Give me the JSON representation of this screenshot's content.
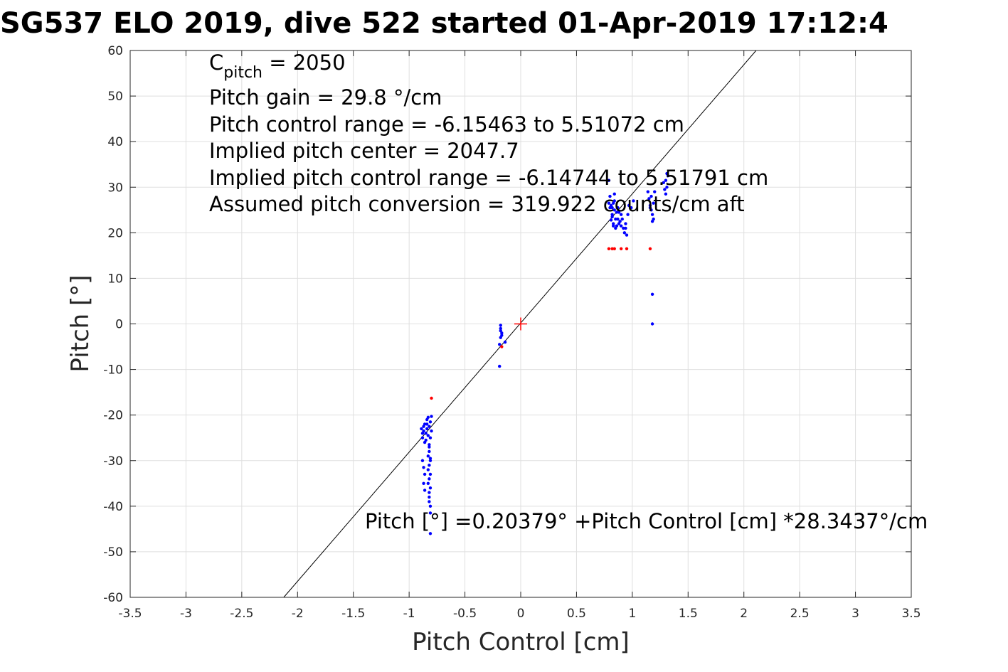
{
  "chart_data": {
    "type": "scatter",
    "title": "SG537 ELO 2019, dive 522 started 01-Apr-2019 17:12:4",
    "xlabel": "Pitch Control [cm]",
    "ylabel": "Pitch [°]",
    "xlim": [
      -3.5,
      3.5
    ],
    "ylim": [
      -60,
      60
    ],
    "xticks": [
      "-3.5",
      "-3",
      "-2.5",
      "-2",
      "-1.5",
      "-1",
      "-0.5",
      "0",
      "0.5",
      "1",
      "1.5",
      "2",
      "2.5",
      "3",
      "3.5"
    ],
    "yticks": [
      "60",
      "50",
      "40",
      "30",
      "20",
      "10",
      "0",
      "-10",
      "-20",
      "-30",
      "-40",
      "-50",
      "-60"
    ],
    "grid": true,
    "annotations": {
      "c_pitch_symbol": "C",
      "c_pitch_subscript": "pitch",
      "c_pitch_value": " = 2050",
      "gain": "Pitch gain = 29.8 °/cm",
      "control_range": "Pitch control range = -6.15463 to 5.51072 cm",
      "implied_center": "Implied pitch center = 2047.7",
      "implied_range": "Implied pitch control range = -6.14744 to 5.51791 cm",
      "conversion": "Assumed pitch conversion = 319.922 counts/cm aft",
      "fit_equation": "Pitch [°] =0.20379° +Pitch Control [cm] *28.3437°/cm"
    },
    "fit_line": {
      "intercept": 0.20379,
      "slope": 28.3437,
      "color": "#000000"
    },
    "center_marker": {
      "x": 0,
      "y": 0,
      "color": "#ff0000"
    },
    "series": [
      {
        "name": "blue samples",
        "color": "#0000ff",
        "points": [
          [
            -0.88,
            -25
          ],
          [
            -0.87,
            -23.5
          ],
          [
            -0.86,
            -22
          ],
          [
            -0.85,
            -24
          ],
          [
            -0.84,
            -21
          ],
          [
            -0.83,
            -20.5
          ],
          [
            -0.82,
            -22.5
          ],
          [
            -0.81,
            -21.5
          ],
          [
            -0.8,
            -20.3
          ],
          [
            -0.86,
            -26
          ],
          [
            -0.85,
            -25.5
          ],
          [
            -0.84,
            -23
          ],
          [
            -0.83,
            -24.5
          ],
          [
            -0.82,
            -26.5
          ],
          [
            -0.81,
            -25
          ],
          [
            -0.8,
            -23.5
          ],
          [
            -0.88,
            -24
          ],
          [
            -0.87,
            -22.5
          ],
          [
            -0.89,
            -23
          ],
          [
            -0.84,
            -22
          ],
          [
            -0.82,
            -28
          ],
          [
            -0.81,
            -30
          ],
          [
            -0.83,
            -32
          ],
          [
            -0.82,
            -34
          ],
          [
            -0.81,
            -36
          ],
          [
            -0.82,
            -38
          ],
          [
            -0.81,
            -40
          ],
          [
            -0.83,
            -35
          ],
          [
            -0.82,
            -31
          ],
          [
            -0.81,
            -33
          ],
          [
            -0.83,
            -29
          ],
          [
            -0.82,
            -27
          ],
          [
            -0.81,
            -29.5
          ],
          [
            -0.88,
            -30
          ],
          [
            -0.87,
            -31.5
          ],
          [
            -0.86,
            -33
          ],
          [
            -0.87,
            -35
          ],
          [
            -0.86,
            -36.5
          ],
          [
            -0.81,
            -41.5
          ],
          [
            -0.81,
            -46
          ],
          [
            -0.82,
            -37
          ],
          [
            -0.82,
            -39
          ],
          [
            -0.18,
            -0.3
          ],
          [
            -0.18,
            -1
          ],
          [
            -0.18,
            -1.5
          ],
          [
            -0.17,
            -2
          ],
          [
            -0.17,
            -2.5
          ],
          [
            -0.18,
            -3
          ],
          [
            -0.19,
            -4.5
          ],
          [
            -0.14,
            -4
          ],
          [
            -0.19,
            -9.3
          ],
          [
            0.79,
            31.5
          ],
          [
            0.8,
            28
          ],
          [
            0.81,
            26
          ],
          [
            0.82,
            24
          ],
          [
            0.83,
            22
          ],
          [
            0.84,
            25
          ],
          [
            0.85,
            23
          ],
          [
            0.86,
            21.5
          ],
          [
            0.84,
            27
          ],
          [
            0.82,
            23.5
          ],
          [
            0.87,
            25.5
          ],
          [
            0.88,
            24.5
          ],
          [
            0.89,
            22.5
          ],
          [
            0.9,
            24
          ],
          [
            0.91,
            23
          ],
          [
            0.92,
            21
          ],
          [
            0.93,
            20
          ],
          [
            0.94,
            22
          ],
          [
            0.95,
            19.5
          ],
          [
            0.84,
            28.5
          ],
          [
            0.83,
            26.5
          ],
          [
            0.86,
            24.5
          ],
          [
            0.81,
            22.8
          ],
          [
            0.8,
            25.5
          ],
          [
            0.79,
            26.5
          ],
          [
            0.85,
            21
          ],
          [
            0.88,
            22
          ],
          [
            0.9,
            21.5
          ],
          [
            0.96,
            24
          ],
          [
            0.97,
            26
          ],
          [
            0.99,
            25.5
          ],
          [
            1.01,
            27
          ],
          [
            0.94,
            21
          ],
          [
            0.83,
            21.5
          ],
          [
            0.82,
            25.5
          ],
          [
            0.87,
            23
          ],
          [
            1.14,
            29
          ],
          [
            1.15,
            27.5
          ],
          [
            1.16,
            26
          ],
          [
            1.17,
            25
          ],
          [
            1.18,
            24
          ],
          [
            1.19,
            23
          ],
          [
            1.17,
            28
          ],
          [
            1.16,
            25.5
          ],
          [
            1.18,
            22.5
          ],
          [
            1.2,
            29
          ],
          [
            1.19,
            26.5
          ],
          [
            1.18,
            6.5
          ],
          [
            1.18,
            0
          ],
          [
            1.28,
            31
          ],
          [
            1.29,
            29.5
          ],
          [
            1.3,
            31.5
          ],
          [
            1.31,
            30
          ],
          [
            1.32,
            32.5
          ],
          [
            1.3,
            28.5
          ],
          [
            1.31,
            33
          ]
        ]
      },
      {
        "name": "red samples",
        "color": "#ff0000",
        "points": [
          [
            -0.8,
            -16.3
          ],
          [
            -0.17,
            -5
          ],
          [
            0.79,
            16.5
          ],
          [
            0.82,
            16.5
          ],
          [
            0.84,
            16.5
          ],
          [
            0.9,
            16.5
          ],
          [
            0.95,
            16.5
          ],
          [
            1.16,
            16.5
          ]
        ]
      }
    ]
  }
}
